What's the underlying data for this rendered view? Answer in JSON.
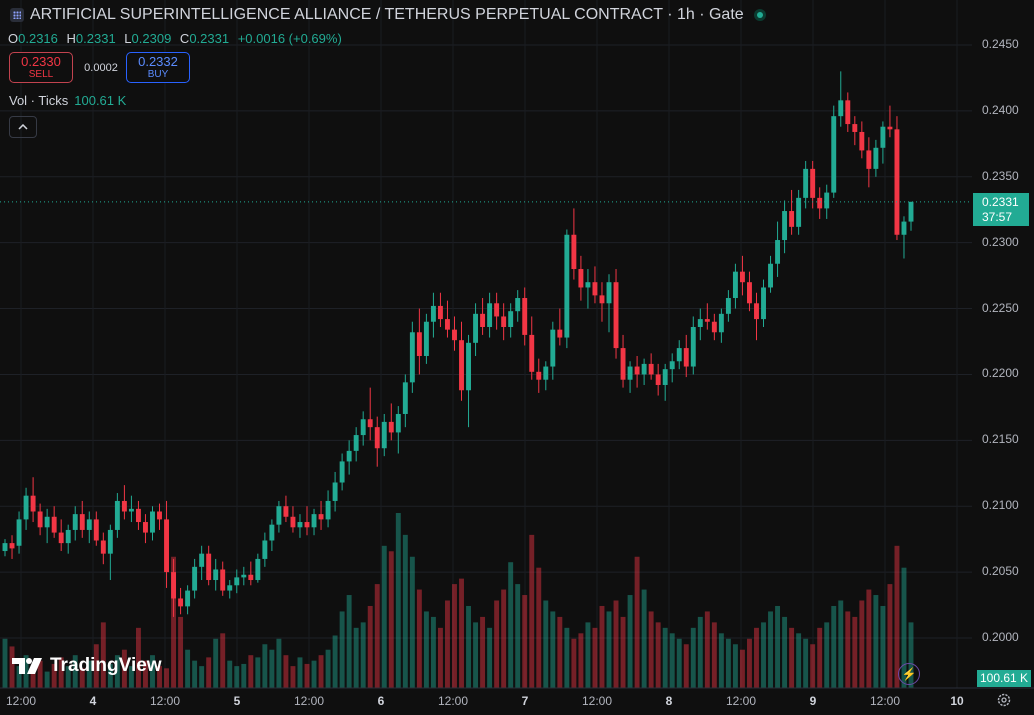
{
  "header": {
    "title": "ARTIFICIAL SUPERINTELLIGENCE ALLIANCE / TETHERUS PERPETUAL CONTRACT · 1h · Gate",
    "ohlc": {
      "o_label": "O",
      "o_value": "0.2316",
      "h_label": "H",
      "h_value": "0.2331",
      "l_label": "L",
      "l_value": "0.2309",
      "c_label": "C",
      "c_value": "0.2331",
      "change": "+0.0016 (+0.69%)"
    },
    "sell": {
      "price": "0.2330",
      "label": "SELL"
    },
    "buy": {
      "price": "0.2332",
      "label": "BUY"
    },
    "spread": "0.0002",
    "volume": {
      "label": "Vol · Ticks",
      "value": "100.61 K"
    }
  },
  "logo": {
    "text": "TradingView"
  },
  "tags": {
    "price": "0.2331",
    "countdown": "37:57",
    "volume": "100.61 K"
  },
  "colors": {
    "up": "#22ab94",
    "down": "#f23645",
    "background": "#0f0f0f"
  },
  "chart_data": {
    "type": "candlestick",
    "interval": "1h",
    "y_ticks": [
      "0.2450",
      "0.2400",
      "0.2350",
      "0.2300",
      "0.2250",
      "0.2200",
      "0.2150",
      "0.2100",
      "0.2050",
      "0.2000"
    ],
    "ylim": [
      0.1968,
      0.2465
    ],
    "x_ticks": [
      "12:00",
      "4",
      "12:00",
      "5",
      "12:00",
      "6",
      "12:00",
      "7",
      "12:00",
      "8",
      "12:00",
      "9",
      "12:00",
      "10"
    ],
    "x_day_ticks": [
      "4",
      "5",
      "6",
      "7",
      "8",
      "9",
      "10"
    ],
    "last_price": 0.2331,
    "grid": true,
    "ohlc_series": [
      [
        0.2066,
        0.2075,
        0.2062,
        0.2072
      ],
      [
        0.2072,
        0.2078,
        0.206,
        0.2068
      ],
      [
        0.207,
        0.2096,
        0.2064,
        0.209
      ],
      [
        0.209,
        0.2114,
        0.2082,
        0.2108
      ],
      [
        0.2108,
        0.2122,
        0.2088,
        0.2096
      ],
      [
        0.2096,
        0.2102,
        0.2078,
        0.2084
      ],
      [
        0.2084,
        0.2098,
        0.2072,
        0.2092
      ],
      [
        0.2092,
        0.21,
        0.2076,
        0.208
      ],
      [
        0.208,
        0.209,
        0.2066,
        0.2072
      ],
      [
        0.2072,
        0.2086,
        0.2064,
        0.2082
      ],
      [
        0.2082,
        0.21,
        0.2074,
        0.2094
      ],
      [
        0.2094,
        0.2104,
        0.2076,
        0.2082
      ],
      [
        0.2082,
        0.2096,
        0.2072,
        0.209
      ],
      [
        0.209,
        0.2096,
        0.207,
        0.2074
      ],
      [
        0.2074,
        0.208,
        0.2056,
        0.2064
      ],
      [
        0.2064,
        0.2086,
        0.2044,
        0.2082
      ],
      [
        0.2082,
        0.211,
        0.2076,
        0.2104
      ],
      [
        0.2104,
        0.2116,
        0.209,
        0.2096
      ],
      [
        0.2096,
        0.2108,
        0.2088,
        0.2098
      ],
      [
        0.2098,
        0.2104,
        0.2082,
        0.2088
      ],
      [
        0.2088,
        0.2094,
        0.2072,
        0.208
      ],
      [
        0.208,
        0.21,
        0.2074,
        0.2096
      ],
      [
        0.2096,
        0.2102,
        0.2082,
        0.209
      ],
      [
        0.209,
        0.2104,
        0.2038,
        0.205
      ],
      [
        0.205,
        0.206,
        0.2016,
        0.203
      ],
      [
        0.203,
        0.2038,
        0.2018,
        0.2024
      ],
      [
        0.2024,
        0.204,
        0.2018,
        0.2036
      ],
      [
        0.2036,
        0.206,
        0.203,
        0.2054
      ],
      [
        0.2054,
        0.207,
        0.2044,
        0.2064
      ],
      [
        0.2064,
        0.207,
        0.204,
        0.2044
      ],
      [
        0.2044,
        0.206,
        0.2036,
        0.2052
      ],
      [
        0.2052,
        0.2058,
        0.2032,
        0.2036
      ],
      [
        0.2036,
        0.2044,
        0.203,
        0.204
      ],
      [
        0.204,
        0.2052,
        0.2034,
        0.2046
      ],
      [
        0.2046,
        0.2054,
        0.204,
        0.2048
      ],
      [
        0.2048,
        0.2058,
        0.204,
        0.2044
      ],
      [
        0.2044,
        0.2064,
        0.2042,
        0.206
      ],
      [
        0.206,
        0.208,
        0.2054,
        0.2074
      ],
      [
        0.2074,
        0.209,
        0.2066,
        0.2086
      ],
      [
        0.2086,
        0.2104,
        0.208,
        0.21
      ],
      [
        0.21,
        0.2108,
        0.2088,
        0.2092
      ],
      [
        0.2092,
        0.21,
        0.208,
        0.2084
      ],
      [
        0.2084,
        0.2094,
        0.2076,
        0.2088
      ],
      [
        0.2088,
        0.21,
        0.2078,
        0.2084
      ],
      [
        0.2084,
        0.2098,
        0.2078,
        0.2094
      ],
      [
        0.2094,
        0.2104,
        0.2082,
        0.209
      ],
      [
        0.209,
        0.2112,
        0.2084,
        0.2104
      ],
      [
        0.2104,
        0.2126,
        0.2096,
        0.2118
      ],
      [
        0.2118,
        0.214,
        0.2112,
        0.2134
      ],
      [
        0.2134,
        0.215,
        0.2124,
        0.2142
      ],
      [
        0.2142,
        0.216,
        0.2134,
        0.2154
      ],
      [
        0.2154,
        0.2172,
        0.2146,
        0.2166
      ],
      [
        0.2166,
        0.219,
        0.215,
        0.216
      ],
      [
        0.216,
        0.2168,
        0.213,
        0.2144
      ],
      [
        0.2144,
        0.217,
        0.2138,
        0.2164
      ],
      [
        0.2164,
        0.2178,
        0.215,
        0.2156
      ],
      [
        0.2156,
        0.2176,
        0.214,
        0.217
      ],
      [
        0.217,
        0.22,
        0.216,
        0.2194
      ],
      [
        0.2194,
        0.224,
        0.2186,
        0.2232
      ],
      [
        0.2232,
        0.225,
        0.22,
        0.2214
      ],
      [
        0.2214,
        0.2246,
        0.2208,
        0.224
      ],
      [
        0.224,
        0.2262,
        0.2228,
        0.2252
      ],
      [
        0.2252,
        0.2262,
        0.2236,
        0.2242
      ],
      [
        0.2242,
        0.2256,
        0.2228,
        0.2234
      ],
      [
        0.2234,
        0.2244,
        0.2218,
        0.2226
      ],
      [
        0.2226,
        0.224,
        0.218,
        0.2188
      ],
      [
        0.2188,
        0.223,
        0.216,
        0.2224
      ],
      [
        0.2224,
        0.2254,
        0.2214,
        0.2246
      ],
      [
        0.2246,
        0.2258,
        0.223,
        0.2236
      ],
      [
        0.2236,
        0.2262,
        0.2228,
        0.2254
      ],
      [
        0.2254,
        0.2262,
        0.2234,
        0.2244
      ],
      [
        0.2244,
        0.2254,
        0.2226,
        0.2236
      ],
      [
        0.2236,
        0.2254,
        0.2228,
        0.2248
      ],
      [
        0.2248,
        0.2264,
        0.224,
        0.2258
      ],
      [
        0.2258,
        0.2266,
        0.2222,
        0.223
      ],
      [
        0.223,
        0.2244,
        0.2196,
        0.2202
      ],
      [
        0.2202,
        0.2212,
        0.2186,
        0.2196
      ],
      [
        0.2196,
        0.221,
        0.2188,
        0.2206
      ],
      [
        0.2206,
        0.224,
        0.2196,
        0.2234
      ],
      [
        0.2234,
        0.225,
        0.2222,
        0.2228
      ],
      [
        0.2228,
        0.231,
        0.222,
        0.2306
      ],
      [
        0.2306,
        0.2326,
        0.2272,
        0.228
      ],
      [
        0.228,
        0.229,
        0.2256,
        0.2266
      ],
      [
        0.2266,
        0.228,
        0.225,
        0.227
      ],
      [
        0.227,
        0.2282,
        0.2254,
        0.226
      ],
      [
        0.226,
        0.227,
        0.224,
        0.2254
      ],
      [
        0.2254,
        0.2276,
        0.2232,
        0.227
      ],
      [
        0.227,
        0.228,
        0.2212,
        0.222
      ],
      [
        0.222,
        0.223,
        0.219,
        0.2196
      ],
      [
        0.2196,
        0.221,
        0.2186,
        0.2206
      ],
      [
        0.2206,
        0.2214,
        0.219,
        0.22
      ],
      [
        0.22,
        0.2212,
        0.2192,
        0.2208
      ],
      [
        0.2208,
        0.2216,
        0.2196,
        0.22
      ],
      [
        0.22,
        0.2208,
        0.2184,
        0.2192
      ],
      [
        0.2192,
        0.2208,
        0.218,
        0.2204
      ],
      [
        0.2204,
        0.2216,
        0.2194,
        0.221
      ],
      [
        0.221,
        0.2226,
        0.2204,
        0.222
      ],
      [
        0.222,
        0.223,
        0.2198,
        0.2206
      ],
      [
        0.2206,
        0.2244,
        0.22,
        0.2236
      ],
      [
        0.2236,
        0.225,
        0.2226,
        0.2242
      ],
      [
        0.2242,
        0.2254,
        0.2234,
        0.224
      ],
      [
        0.224,
        0.2246,
        0.2226,
        0.2232
      ],
      [
        0.2232,
        0.225,
        0.2224,
        0.2246
      ],
      [
        0.2246,
        0.2264,
        0.224,
        0.2258
      ],
      [
        0.2258,
        0.2284,
        0.225,
        0.2278
      ],
      [
        0.2278,
        0.229,
        0.226,
        0.227
      ],
      [
        0.227,
        0.2278,
        0.2248,
        0.2254
      ],
      [
        0.2254,
        0.2262,
        0.2226,
        0.2242
      ],
      [
        0.2242,
        0.2272,
        0.2236,
        0.2266
      ],
      [
        0.2266,
        0.229,
        0.2262,
        0.2284
      ],
      [
        0.2284,
        0.2316,
        0.2274,
        0.2302
      ],
      [
        0.2302,
        0.2332,
        0.2292,
        0.2324
      ],
      [
        0.2324,
        0.234,
        0.2306,
        0.2312
      ],
      [
        0.2312,
        0.234,
        0.2306,
        0.2334
      ],
      [
        0.2334,
        0.2362,
        0.2326,
        0.2356
      ],
      [
        0.2356,
        0.2362,
        0.2326,
        0.2334
      ],
      [
        0.2334,
        0.2342,
        0.2318,
        0.2326
      ],
      [
        0.2326,
        0.2344,
        0.2318,
        0.2338
      ],
      [
        0.2338,
        0.2404,
        0.2334,
        0.2396
      ],
      [
        0.2396,
        0.243,
        0.2388,
        0.2408
      ],
      [
        0.2408,
        0.2414,
        0.2384,
        0.239
      ],
      [
        0.239,
        0.2396,
        0.2374,
        0.2384
      ],
      [
        0.2384,
        0.2392,
        0.2364,
        0.237
      ],
      [
        0.237,
        0.238,
        0.2342,
        0.2356
      ],
      [
        0.2356,
        0.2378,
        0.235,
        0.2372
      ],
      [
        0.2372,
        0.2392,
        0.236,
        0.2388
      ],
      [
        0.2388,
        0.2404,
        0.238,
        0.2386
      ],
      [
        0.2386,
        0.2396,
        0.2302,
        0.2306
      ],
      [
        0.2306,
        0.232,
        0.2288,
        0.2316
      ],
      [
        0.2316,
        0.2331,
        0.2309,
        0.2331
      ]
    ],
    "volume_series": [
      45,
      38,
      20,
      30,
      18,
      25,
      15,
      22,
      28,
      20,
      30,
      18,
      25,
      40,
      60,
      22,
      30,
      35,
      20,
      55,
      25,
      30,
      20,
      18,
      120,
      65,
      35,
      25,
      20,
      28,
      45,
      50,
      25,
      20,
      22,
      30,
      28,
      40,
      35,
      45,
      30,
      20,
      28,
      22,
      25,
      30,
      35,
      48,
      70,
      85,
      55,
      60,
      75,
      95,
      130,
      125,
      160,
      140,
      120,
      90,
      70,
      65,
      55,
      80,
      95,
      100,
      75,
      60,
      65,
      55,
      80,
      90,
      115,
      95,
      85,
      140,
      110,
      80,
      70,
      65,
      55,
      45,
      50,
      60,
      55,
      75,
      70,
      80,
      65,
      85,
      120,
      90,
      70,
      60,
      55,
      50,
      45,
      40,
      55,
      65,
      70,
      60,
      50,
      45,
      40,
      35,
      45,
      55,
      60,
      70,
      75,
      65,
      55,
      50,
      45,
      40,
      55,
      60,
      75,
      80,
      70,
      65,
      80,
      90,
      85,
      75,
      95,
      130,
      110,
      60
    ]
  }
}
